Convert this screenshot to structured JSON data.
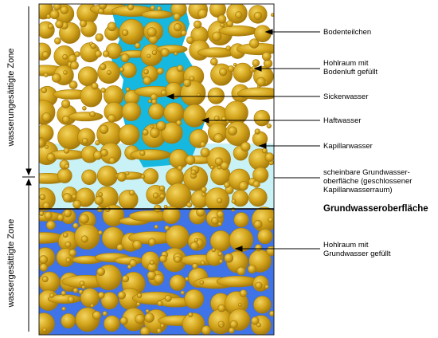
{
  "zones": {
    "unsaturated": "wasserungesättigte Zone",
    "saturated": "wassergesättigte Zone"
  },
  "annotations": [
    {
      "id": "bodenteilchen",
      "text": "Bodenteilchen",
      "bold": false
    },
    {
      "id": "hohlraum-luft",
      "text": "Hohlraum mit\nBodenluft gefüllt",
      "bold": false
    },
    {
      "id": "sickerwasser",
      "text": "Sickerwasser",
      "bold": false
    },
    {
      "id": "haftwasser",
      "text": "Haftwasser",
      "bold": false
    },
    {
      "id": "kapillarwasser",
      "text": "Kapillarwasser",
      "bold": false
    },
    {
      "id": "scheinbare",
      "text": "scheinbare  Grundwasser-\noberfläche (geschlossener\nKapillarwasserraum)",
      "bold": false
    },
    {
      "id": "grundwasseroberflaeche",
      "text": "Grundwasseroberfläche",
      "bold": true
    },
    {
      "id": "hohlraum-grundwasser",
      "text": "Hohlraum mit\nGrundwasser gefüllt",
      "bold": false
    }
  ],
  "colors": {
    "grain": "#d4a51c",
    "grain_dark": "#a57a0c",
    "grain_light": "#f3d560",
    "seepage_water": "#16b8e0",
    "capillary_fringe": "#c9f2f7",
    "groundwater": "#3f73e8",
    "air_pore": "#ffffff"
  }
}
